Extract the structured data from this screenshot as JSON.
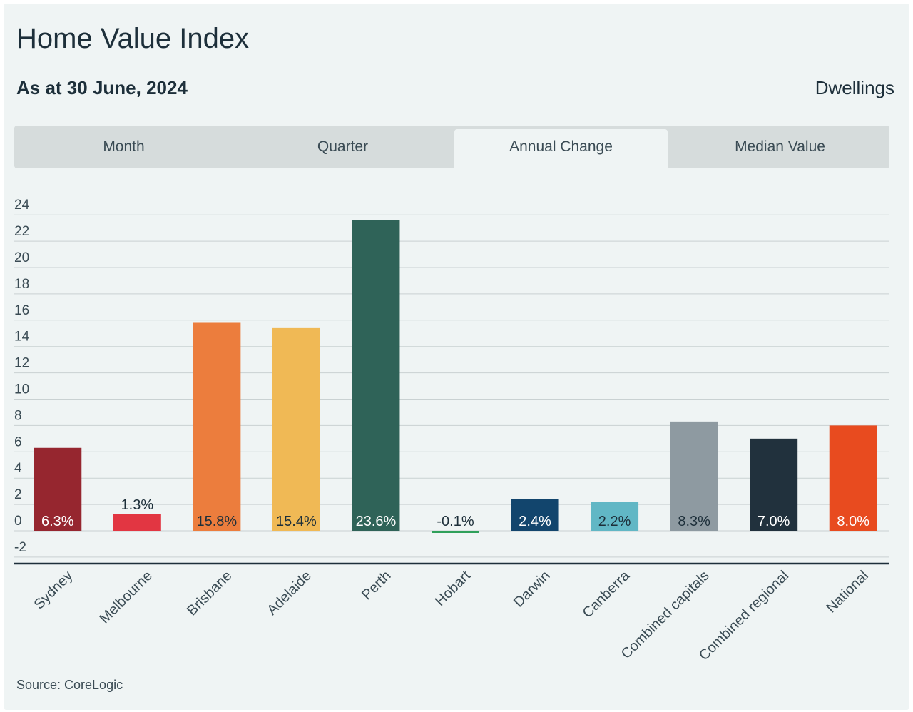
{
  "header": {
    "title": "Home Value Index",
    "subtitle": "As at 30 June, 2024",
    "measure": "Dwellings"
  },
  "tabs": [
    {
      "label": "Month",
      "active": false
    },
    {
      "label": "Quarter",
      "active": false
    },
    {
      "label": "Annual Change",
      "active": true
    },
    {
      "label": "Median Value",
      "active": false
    }
  ],
  "chart_data": {
    "type": "bar",
    "categories": [
      "Sydney",
      "Melbourne",
      "Brisbane",
      "Adelaide",
      "Perth",
      "Hobart",
      "Darwin",
      "Canberra",
      "Combined capitals",
      "Combined regional",
      "National"
    ],
    "values": [
      6.3,
      1.3,
      15.8,
      15.4,
      23.6,
      -0.1,
      2.4,
      2.2,
      8.3,
      7.0,
      8.0
    ],
    "value_labels": [
      "6.3%",
      "1.3%",
      "15.8%",
      "15.4%",
      "23.6%",
      "-0.1%",
      "2.4%",
      "2.2%",
      "8.3%",
      "7.0%",
      "8.0%"
    ],
    "colors": [
      "#96262f",
      "#e23642",
      "#ec7d3d",
      "#f0b955",
      "#2f6358",
      "#2fa05a",
      "#12456d",
      "#61b7c5",
      "#8e9aa1",
      "#21313d",
      "#e84b1f"
    ],
    "label_colors": [
      "#ffffff",
      "#1d2f3a",
      "#1d2f3a",
      "#1d2f3a",
      "#ffffff",
      "#1d2f3a",
      "#ffffff",
      "#1d2f3a",
      "#1d2f3a",
      "#ffffff",
      "#ffffff"
    ],
    "yticks": [
      24,
      22,
      20,
      18,
      16,
      14,
      12,
      10,
      8,
      6,
      4,
      2,
      0,
      -2
    ],
    "ylim": [
      -2,
      24
    ],
    "grid": true
  },
  "footer": {
    "source": "Source: CoreLogic"
  }
}
